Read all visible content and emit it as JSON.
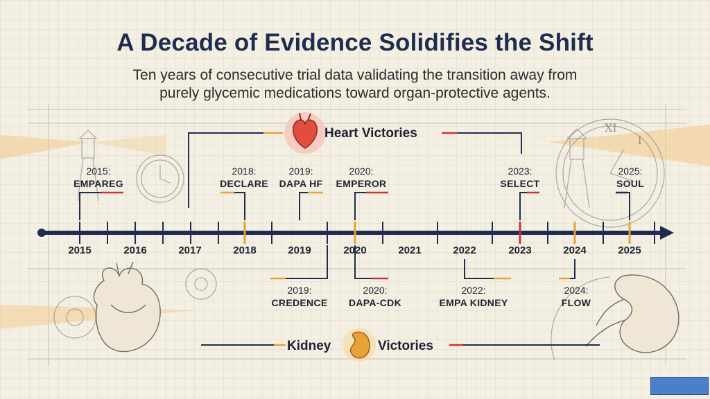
{
  "title": "A Decade of Evidence Solidifies the Shift",
  "subtitle_line1": "Ten years of consecutive trial data validating the transition away from",
  "subtitle_line2": "purely glycemic medications toward organ-protective agents.",
  "heart_group": {
    "label": "Heart Victories",
    "icon": "heart-icon",
    "color": "#e03b3b"
  },
  "kidney_group": {
    "label_left": "Kidney",
    "label_right": "Victories",
    "icon": "kidney-icon",
    "color": "#e8a23a"
  },
  "timeline": {
    "years": [
      "2015",
      "2016",
      "2017",
      "2018",
      "2019",
      "2020",
      "2021",
      "2022",
      "2023",
      "2024",
      "2025"
    ],
    "axis_color": "#1e2d4f"
  },
  "heart_trials": [
    {
      "year_label": "2015:",
      "name": "EMPAREG"
    },
    {
      "year_label": "2018:",
      "name": "DECLARE"
    },
    {
      "year_label": "2019:",
      "name": "DAPA HF"
    },
    {
      "year_label": "2020:",
      "name": "EMPEROR"
    },
    {
      "year_label": "2023:",
      "name": "SELECT"
    },
    {
      "year_label": "2025:",
      "name": "SOUL"
    }
  ],
  "kidney_trials": [
    {
      "year_label": "2019:",
      "name": "CREDENCE"
    },
    {
      "year_label": "2020:",
      "name": "DAPA-CDK"
    },
    {
      "year_label": "2022:",
      "name": "EMPA KIDNEY"
    },
    {
      "year_label": "2024:",
      "name": "FLOW"
    }
  ]
}
